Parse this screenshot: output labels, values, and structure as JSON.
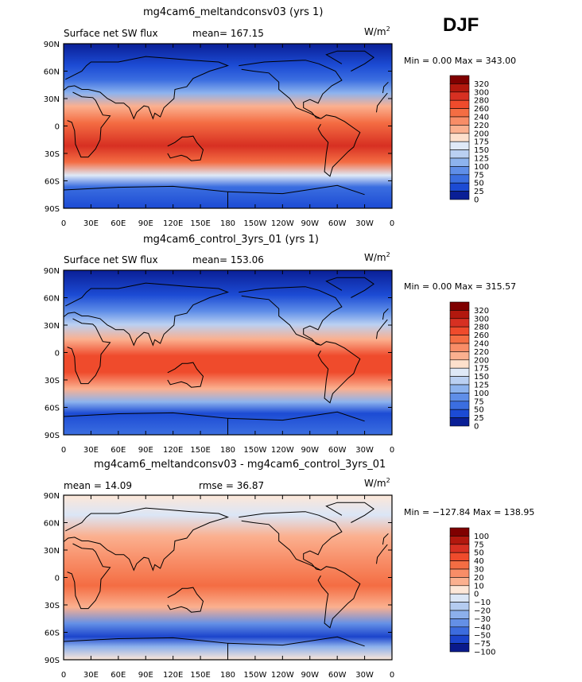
{
  "season": "DJF",
  "panels": [
    {
      "title": "mg4cam6_meltandconsv03 (yrs 1)",
      "left_label": "Surface net SW flux",
      "stat_label": "mean= 167.15",
      "units": "W/m",
      "units_exp": "2",
      "minmax": "Min =    0.00  Max = 343.00",
      "colorbar": [
        "320",
        "300",
        "280",
        "260",
        "240",
        "220",
        "200",
        "175",
        "150",
        "125",
        "100",
        "75",
        "50",
        "25",
        "0"
      ]
    },
    {
      "title": "mg4cam6_control_3yrs_01 (yrs 1)",
      "left_label": "Surface net SW flux",
      "stat_label": "mean= 153.06",
      "units": "W/m",
      "units_exp": "2",
      "minmax": "Min =    0.00  Max = 315.57",
      "colorbar": [
        "320",
        "300",
        "280",
        "260",
        "240",
        "220",
        "200",
        "175",
        "150",
        "125",
        "100",
        "75",
        "50",
        "25",
        "0"
      ]
    },
    {
      "title": "mg4cam6_meltandconsv03 - mg4cam6_control_3yrs_01",
      "left_label": "mean =   14.09",
      "stat_label": "rmse =   36.87",
      "units": "W/m",
      "units_exp": "2",
      "minmax": "Min = −127.84  Max = 138.95",
      "colorbar": [
        "100",
        "75",
        "50",
        "40",
        "30",
        "20",
        "10",
        "0",
        "−10",
        "−20",
        "−30",
        "−40",
        "−50",
        "−75",
        "−100"
      ]
    }
  ],
  "lat_ticks": [
    "90N",
    "60N",
    "30N",
    "0",
    "30S",
    "60S",
    "90S"
  ],
  "lon_ticks": [
    "0",
    "30E",
    "60E",
    "90E",
    "120E",
    "150E",
    "180",
    "150W",
    "120W",
    "90W",
    "60W",
    "30W",
    "0"
  ],
  "colors": {
    "abs_scale": [
      "#7f0000",
      "#b2180e",
      "#d73022",
      "#ef4b2c",
      "#f46d43",
      "#f88d67",
      "#fbb08f",
      "#fde0cc",
      "#dfe9f7",
      "#bad0f2",
      "#8db3ee",
      "#5f8ee8",
      "#3b6ee0",
      "#1c4bd4",
      "#0a1f96"
    ],
    "diff_scale": [
      "#7f0000",
      "#b2180e",
      "#d73022",
      "#ef4b2c",
      "#f46d43",
      "#f88d67",
      "#fbb08f",
      "#fde7d8",
      "#dbe6f6",
      "#b4cbf0",
      "#8cb0ec",
      "#6490e6",
      "#3c6cde",
      "#1b44cc",
      "#0a1a8c"
    ]
  }
}
